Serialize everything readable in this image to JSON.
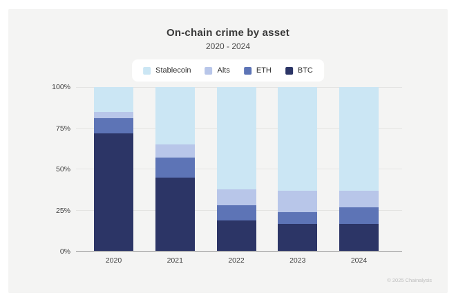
{
  "page": {
    "title": "On-chain crime by asset",
    "subtitle": "2020 - 2024",
    "footer": "© 2025 Chainalysis"
  },
  "colors": {
    "page_bg": "#ffffff",
    "card_bg": "#f4f4f3",
    "legend_bg": "#ffffff",
    "legend_text": "#2e2e2e",
    "title_text": "#3a3a3a",
    "subtitle_text": "#4a4a4a",
    "tick_text": "#3d3d3d",
    "gridline": "#e4e4e2",
    "axis_line": "#949494",
    "footer_text": "#bdbdbd",
    "stablecoin": "#cbe6f4",
    "alts": "#b8c6e9",
    "eth": "#5d74b6",
    "btc": "#2c3566"
  },
  "chart_data": {
    "type": "bar",
    "stacked": true,
    "stack_unit": "percent",
    "title": "On-chain crime by asset",
    "subtitle": "2020 - 2024",
    "categories": [
      "2020",
      "2021",
      "2022",
      "2023",
      "2024"
    ],
    "series": [
      {
        "name": "Stablecoin",
        "color": "#cbe6f4",
        "values": [
          15,
          35,
          62,
          63,
          63
        ]
      },
      {
        "name": "Alts",
        "color": "#b8c6e9",
        "values": [
          4,
          8,
          10,
          13,
          10
        ]
      },
      {
        "name": "ETH",
        "color": "#5d74b6",
        "values": [
          9,
          12,
          9,
          7,
          10
        ]
      },
      {
        "name": "BTC",
        "color": "#2c3566",
        "values": [
          72,
          45,
          19,
          17,
          17
        ]
      }
    ],
    "stack_order_bottom_to_top": [
      "BTC",
      "ETH",
      "Alts",
      "Stablecoin"
    ],
    "ylim": [
      0,
      100
    ],
    "yticks": [
      0,
      25,
      50,
      75,
      100
    ],
    "ytick_labels": [
      "0%",
      "25%",
      "50%",
      "75%",
      "100%"
    ],
    "grid": true,
    "legend_position": "top-center",
    "footer": "© 2025 Chainalysis"
  }
}
